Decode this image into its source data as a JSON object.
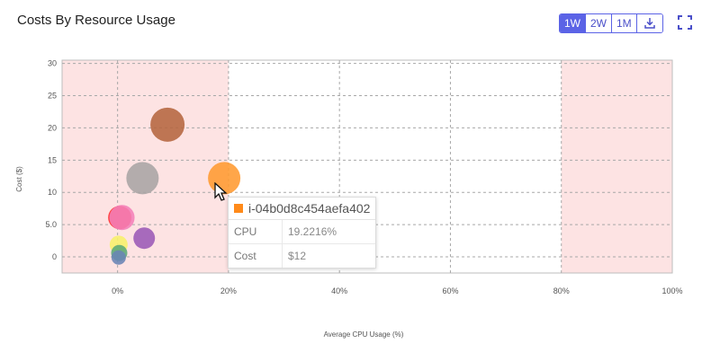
{
  "header": {
    "title": "Costs By Resource Usage",
    "ranges": [
      "1W",
      "2W",
      "1M"
    ],
    "active_range": "1W",
    "download_icon": "download-icon",
    "fullscreen_icon": "fullscreen-icon"
  },
  "colors": {
    "accent": "#5b63e6",
    "band": "#fde3e3"
  },
  "chart_data": {
    "type": "scatter",
    "title": "Costs By Resource Usage",
    "xlabel": "Average CPU Usage (%)",
    "ylabel": "Cost ($)",
    "xlim": [
      -10,
      100
    ],
    "ylim": [
      -2.5,
      30.5
    ],
    "x_ticks": [
      0,
      20,
      40,
      60,
      80,
      100
    ],
    "x_tick_labels": [
      "0%",
      "20%",
      "40%",
      "60%",
      "80%",
      "100%"
    ],
    "y_ticks": [
      0,
      5,
      10,
      15,
      20,
      25,
      30
    ],
    "y_tick_labels": [
      "0",
      "5.0",
      "10",
      "15",
      "20",
      "25",
      "30"
    ],
    "shaded_ranges": [
      [
        -10,
        20
      ],
      [
        80,
        100
      ]
    ],
    "grid": true,
    "points": [
      {
        "x": 9,
        "y": 20.5,
        "r": 19,
        "color": "#b5653f"
      },
      {
        "x": 4.5,
        "y": 12.2,
        "r": 18,
        "color": "#a9a4a4"
      },
      {
        "x": 19.2216,
        "y": 12.2,
        "r": 18,
        "color": "#ff9a30"
      },
      {
        "x": 0.4,
        "y": 6.1,
        "r": 13,
        "color": "#ff3030"
      },
      {
        "x": 0.8,
        "y": 6.1,
        "r": 14,
        "color": "#f47fb8"
      },
      {
        "x": 4.8,
        "y": 2.9,
        "r": 12,
        "color": "#9b59b6"
      },
      {
        "x": 0.2,
        "y": 1.9,
        "r": 10,
        "color": "#f7f06a"
      },
      {
        "x": 0.3,
        "y": 0.6,
        "r": 9,
        "color": "#5aa878"
      },
      {
        "x": 0.2,
        "y": -0.1,
        "r": 8,
        "color": "#6a84b5"
      }
    ]
  },
  "tooltip": {
    "title": "i-04b0d8c454aefa402",
    "cpu_label": "CPU",
    "cpu_value": "19.2216%",
    "cost_label": "Cost",
    "cost_value": "$12"
  }
}
